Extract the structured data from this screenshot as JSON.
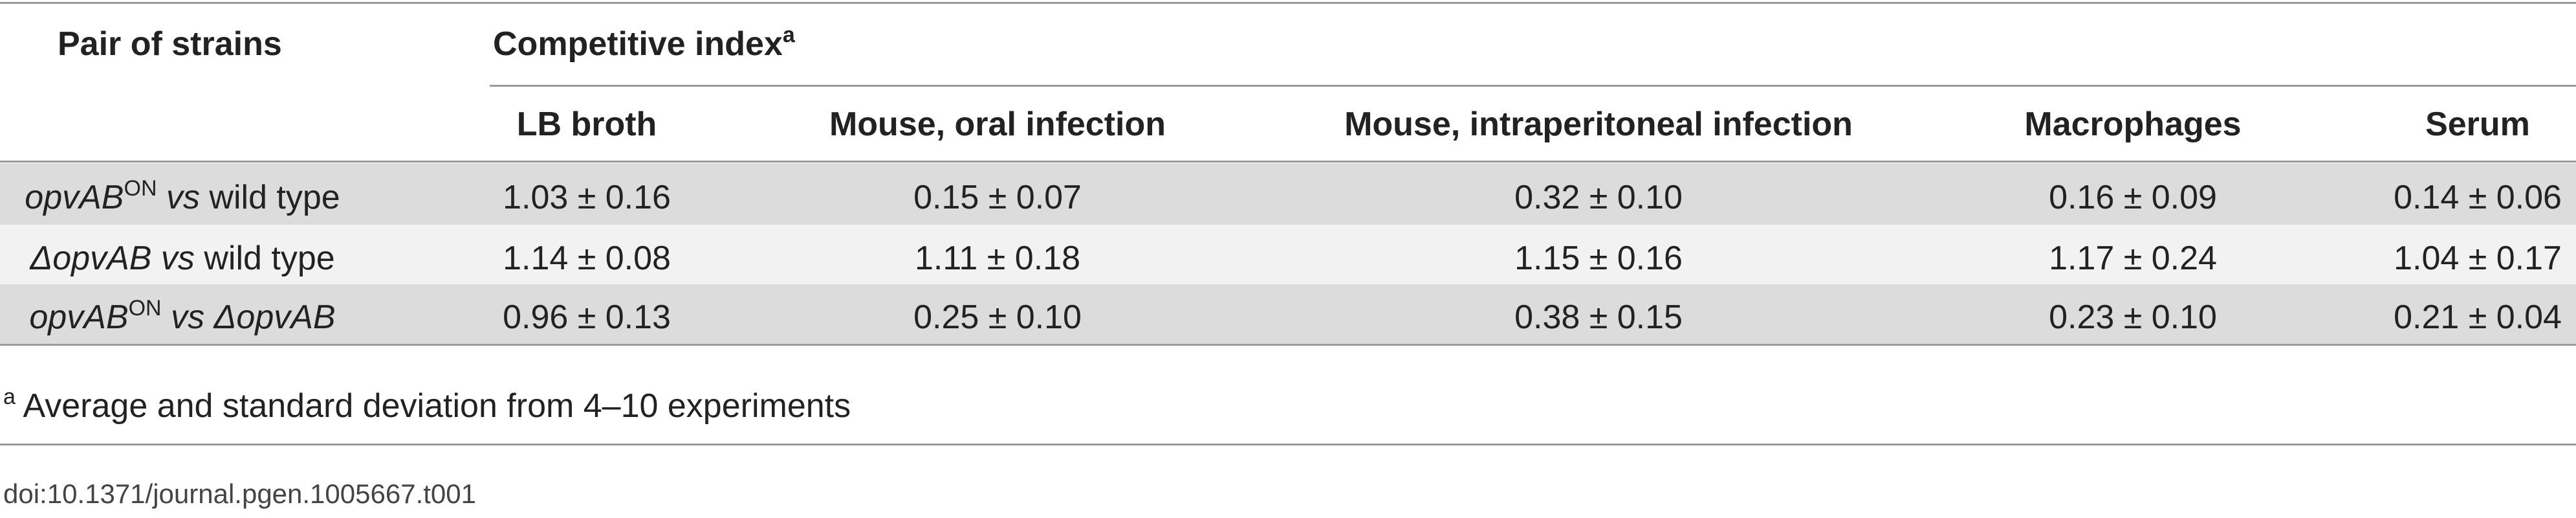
{
  "header": {
    "pair_of_strains": "Pair of strains",
    "competitive_index": "Competitive index",
    "competitive_index_note": "a"
  },
  "columns": [
    "LB broth",
    "Mouse, oral infection",
    "Mouse, intraperitoneal infection",
    "Macrophages",
    "Serum"
  ],
  "rows": [
    {
      "label": [
        "opvAB",
        "ON",
        "vs",
        "wild type"
      ],
      "values": [
        "1.03 ± 0.16",
        "0.15 ± 0.07",
        "0.32 ± 0.10",
        "0.16 ± 0.09",
        "0.14 ± 0.06"
      ]
    },
    {
      "label": [
        "ΔopvAB",
        "vs",
        "wild type"
      ],
      "values": [
        "1.14 ± 0.08",
        "1.11 ± 0.18",
        "1.15 ± 0.16",
        "1.17 ± 0.24",
        "1.04 ± 0.17"
      ]
    },
    {
      "label": [
        "opvAB",
        "ON",
        "vs",
        "ΔopvAB"
      ],
      "values": [
        "0.96 ± 0.13",
        "0.25 ± 0.10",
        "0.38 ± 0.15",
        "0.23 ± 0.10",
        "0.21 ± 0.04"
      ]
    }
  ],
  "footnote": {
    "mark": "a",
    "text": "Average and standard deviation from 4–10 experiments"
  },
  "doi": "doi:10.1371/journal.pgen.1005667.t001"
}
